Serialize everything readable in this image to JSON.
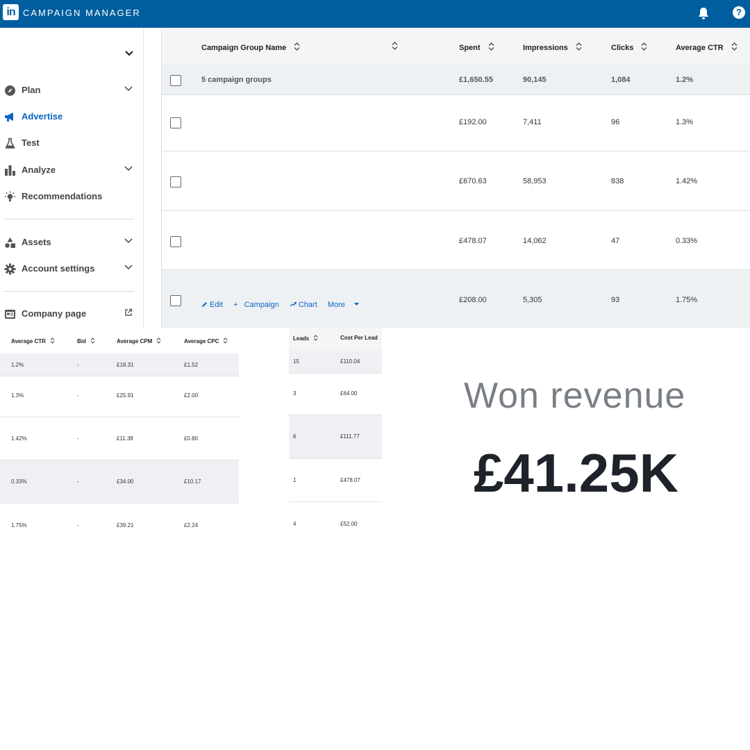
{
  "app": {
    "logo": "in",
    "title": "CAMPAIGN MANAGER"
  },
  "sidebar": {
    "items": [
      {
        "label": "Plan",
        "icon": "compass-icon"
      },
      {
        "label": "Advertise",
        "icon": "megaphone-icon"
      },
      {
        "label": "Test",
        "icon": "flask-icon"
      },
      {
        "label": "Analyze",
        "icon": "bar-chart-icon"
      },
      {
        "label": "Recommendations",
        "icon": "lightbulb-icon"
      },
      {
        "label": "Assets",
        "icon": "shapes-icon"
      },
      {
        "label": "Account settings",
        "icon": "gear-icon"
      },
      {
        "label": "Company page",
        "icon": "company-page-icon"
      }
    ]
  },
  "campaign_table": {
    "headers": {
      "name": "Campaign Group Name",
      "spent": "Spent",
      "impressions": "Impressions",
      "clicks": "Clicks",
      "ctr": "Average CTR"
    },
    "summary": {
      "name": "5 campaign groups",
      "spent": "£1,650.55",
      "impressions": "90,145",
      "clicks": "1,084",
      "ctr": "1.2%"
    },
    "rows": [
      {
        "spent": "£192.00",
        "impressions": "7,411",
        "clicks": "96",
        "ctr": "1.3%"
      },
      {
        "spent": "£670.63",
        "impressions": "58,953",
        "clicks": "838",
        "ctr": "1.42%"
      },
      {
        "spent": "£478.07",
        "impressions": "14,062",
        "clicks": "47",
        "ctr": "0.33%"
      },
      {
        "spent": "£208.00",
        "impressions": "5,305",
        "clicks": "93",
        "ctr": "1.75%"
      }
    ],
    "row_actions": {
      "edit": "Edit",
      "campaign": "Campaign",
      "chart": "Chart",
      "more": "More"
    }
  },
  "metrics_table": {
    "headers": {
      "ctr": "Average CTR",
      "bid": "Bid",
      "cpm": "Average CPM",
      "cpc": "Average CPC"
    },
    "rows": [
      {
        "ctr": "1.2%",
        "bid": "-",
        "cpm": "£18.31",
        "cpc": "£1.52"
      },
      {
        "ctr": "1.3%",
        "bid": "-",
        "cpm": "£25.91",
        "cpc": "£2.00"
      },
      {
        "ctr": "1.42%",
        "bid": "-",
        "cpm": "£11.38",
        "cpc": "£0.80"
      },
      {
        "ctr": "0.33%",
        "bid": "-",
        "cpm": "£34.00",
        "cpc": "£10.17"
      },
      {
        "ctr": "1.75%",
        "bid": "-",
        "cpm": "£39.21",
        "cpc": "£2.24"
      }
    ]
  },
  "leads_table": {
    "headers": {
      "leads": "Leads",
      "cpl": "Cost Per Lead"
    },
    "rows": [
      {
        "leads": "15",
        "cpl": "£110.04"
      },
      {
        "leads": "3",
        "cpl": "£64.00"
      },
      {
        "leads": "6",
        "cpl": "£111.77"
      },
      {
        "leads": "1",
        "cpl": "£478.07"
      },
      {
        "leads": "4",
        "cpl": "£52.00"
      }
    ]
  },
  "won_revenue": {
    "label": "Won revenue",
    "value": "£41.25K"
  },
  "colors": {
    "brand": "#005e9e",
    "link": "#0a66c2",
    "row_shade": "#eef1f4"
  }
}
